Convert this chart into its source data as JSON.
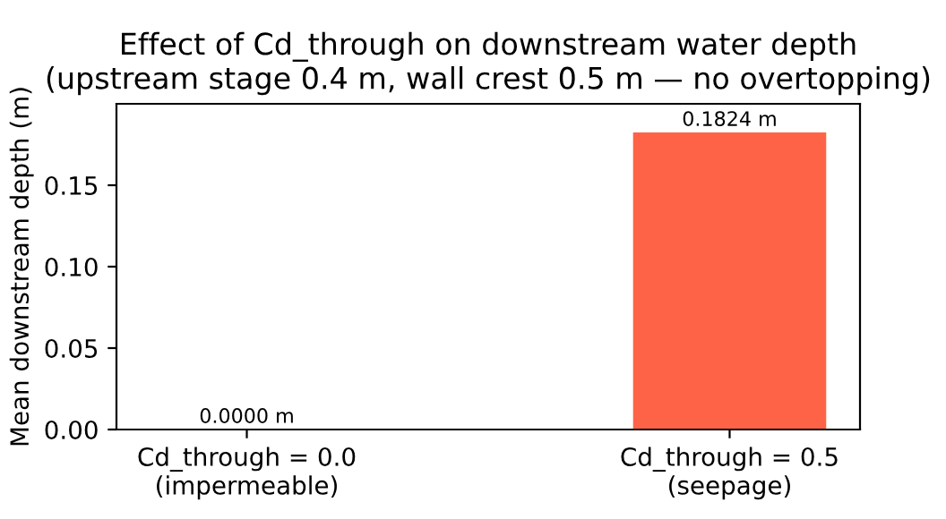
{
  "chart_data": {
    "type": "bar",
    "title": "Effect of Cd_through on downstream water depth\n(upstream stage 0.4 m, wall crest 0.5 m — no overtopping)",
    "ylabel": "Mean downstream depth (m)",
    "categories": [
      "Cd_through = 0.0\n(impermeable)",
      "Cd_through = 0.5\n(seepage)"
    ],
    "values": [
      0.0,
      0.1824
    ],
    "colors": [
      "#4682b4",
      "#ff6347"
    ],
    "value_labels": [
      "0.0000 m",
      "0.1824 m"
    ],
    "ylim": [
      0,
      0.2
    ],
    "yticks": [
      {
        "value": 0,
        "label": "0.00"
      },
      {
        "value": 0.05,
        "label": "0.05"
      },
      {
        "value": 0.1,
        "label": "0.10"
      },
      {
        "value": 0.15,
        "label": "0.15"
      }
    ],
    "grid": false,
    "legend": false
  }
}
